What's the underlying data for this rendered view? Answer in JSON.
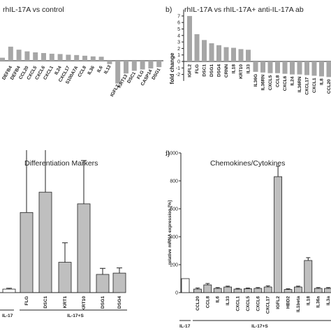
{
  "chart_data": [
    {
      "type": "bar",
      "title": "rhIL-17A vs control",
      "categories": [
        "",
        "DEFB4",
        "DEFB4",
        "CCL20",
        "CXCL5",
        "CXCL6",
        "CXCL1",
        "IL24",
        "CXCL17",
        "S100A7A",
        "CCL8",
        "IL36",
        "IL6",
        "IL13",
        "IGFL2",
        "KRT13",
        "DSC1",
        "FLG",
        "CASP14",
        "DSG1"
      ],
      "values": [
        0.9,
        4.2,
        3.3,
        2.8,
        2.5,
        2.3,
        2.1,
        2.0,
        1.8,
        1.7,
        1.5,
        1.3,
        1.2,
        -1.0,
        -6.8,
        -3.8,
        -3.0,
        -2.6,
        -2.3,
        -1.9
      ]
    },
    {
      "type": "bar",
      "label": "b)",
      "title": "rhIL-17A vs rhIL-17A+ anti-IL-17A ab",
      "ylabel": "fold change",
      "ylim": [
        -3,
        8
      ],
      "yticks": [
        -2,
        -1,
        0,
        1,
        2,
        3,
        4,
        5,
        6,
        7
      ],
      "categories": [
        "IGFL2",
        "FLG",
        "DSC1",
        "DSG1",
        "DSG4",
        "CRNN",
        "IL18",
        "KRT10",
        "IL33",
        "IL36G",
        "IL36RN",
        "CXCL5",
        "CCL8",
        "CXCL6",
        "IL24",
        "IL36RN",
        "CXCL17",
        "CXCL1",
        "IL8",
        "CCL20"
      ],
      "values": [
        7.0,
        4.2,
        3.3,
        2.8,
        2.5,
        2.2,
        2.1,
        1.9,
        1.8,
        -1.6,
        -1.7,
        -1.8,
        -1.8,
        -1.9,
        -2.0,
        -2.0,
        -2.1,
        -2.2,
        -2.3,
        -2.4
      ]
    },
    {
      "type": "bar",
      "title": "Differentiation Markers",
      "groups": [
        "IL-17",
        "IL-17+S"
      ],
      "categories": [
        "",
        "FLG",
        "DSC1",
        "KRT1",
        "KRT10",
        "DSG1",
        "DSG4"
      ],
      "values": [
        8,
        185,
        232,
        70,
        205,
        42,
        45
      ],
      "errors": [
        2,
        165,
        185,
        45,
        100,
        14,
        12
      ],
      "colors": [
        "#ffffff",
        "#bfbfbf",
        "#bfbfbf",
        "#bfbfbf",
        "#bfbfbf",
        "#bfbfbf",
        "#bfbfbf"
      ]
    },
    {
      "type": "bar",
      "label": "d)",
      "title": "Chemokines/Cytokines",
      "ylabel": "relative mRNA expression [%]",
      "ylim": [
        0,
        1000
      ],
      "yticks": [
        0,
        200,
        400,
        600,
        800,
        1000
      ],
      "groups": [
        "IL-17",
        "IL-17+S"
      ],
      "categories": [
        "",
        "CCL20",
        "CCL8",
        "IL6",
        "IL33",
        "CXCL1",
        "CXCL5",
        "CXCL6",
        "CXCL17",
        "IGFL2",
        "HBD2",
        "IL1beta",
        "IL18",
        "IL36a",
        "IL3a"
      ],
      "values": [
        100,
        25,
        55,
        30,
        40,
        25,
        28,
        30,
        40,
        830,
        22,
        40,
        230,
        30,
        30
      ],
      "errors": [
        0,
        8,
        10,
        6,
        6,
        5,
        5,
        6,
        8,
        75,
        5,
        6,
        20,
        6,
        6
      ],
      "colors": [
        "#ffffff",
        "#bfbfbf",
        "#bfbfbf",
        "#bfbfbf",
        "#bfbfbf",
        "#bfbfbf",
        "#bfbfbf",
        "#bfbfbf",
        "#bfbfbf",
        "#bfbfbf",
        "#bfbfbf",
        "#bfbfbf",
        "#bfbfbf",
        "#bfbfbf",
        "#bfbfbf"
      ]
    }
  ]
}
